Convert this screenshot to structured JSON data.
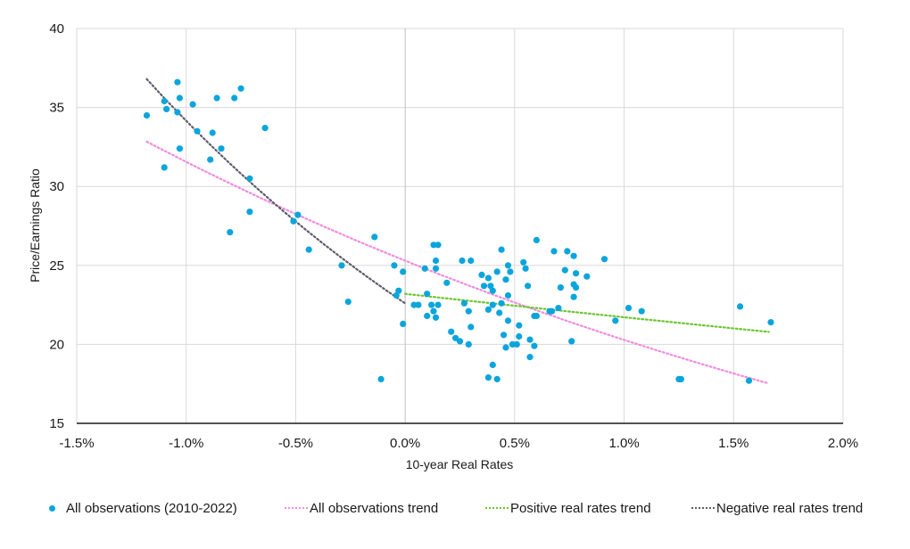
{
  "chart_data": {
    "type": "scatter",
    "title": "",
    "xlabel": "10-year Real Rates",
    "ylabel": "Price/Earnings Ratio",
    "xlim": [
      -1.5,
      2.0
    ],
    "ylim": [
      15,
      40
    ],
    "x_ticks": [
      -1.5,
      -1.0,
      -0.5,
      0.0,
      0.5,
      1.0,
      1.5,
      2.0
    ],
    "x_tick_labels": [
      "-1.5%",
      "-1.0%",
      "-0.5%",
      "0.0%",
      "0.5%",
      "1.0%",
      "1.5%",
      "2.0%"
    ],
    "y_ticks": [
      15,
      20,
      25,
      30,
      35,
      40
    ],
    "y_tick_labels": [
      "15",
      "20",
      "25",
      "30",
      "35",
      "40"
    ],
    "grid": true,
    "legend_position": "bottom",
    "series": [
      {
        "name": "All observations (2010-2022)",
        "kind": "points",
        "color": "#0aa5dc",
        "points": [
          [
            -1.18,
            34.5
          ],
          [
            -1.1,
            35.4
          ],
          [
            -1.09,
            34.9
          ],
          [
            -1.04,
            36.6
          ],
          [
            -1.03,
            35.6
          ],
          [
            -1.04,
            34.7
          ],
          [
            -1.1,
            31.2
          ],
          [
            -1.03,
            32.4
          ],
          [
            -0.97,
            35.2
          ],
          [
            -0.95,
            33.5
          ],
          [
            -0.89,
            31.7
          ],
          [
            -0.88,
            33.4
          ],
          [
            -0.86,
            35.6
          ],
          [
            -0.84,
            32.4
          ],
          [
            -0.78,
            35.6
          ],
          [
            -0.75,
            36.2
          ],
          [
            -0.8,
            27.1
          ],
          [
            -0.64,
            33.7
          ],
          [
            -0.71,
            30.5
          ],
          [
            -0.71,
            28.4
          ],
          [
            -0.49,
            28.2
          ],
          [
            -0.51,
            27.8
          ],
          [
            -0.44,
            26.0
          ],
          [
            -0.29,
            25.0
          ],
          [
            -0.26,
            22.7
          ],
          [
            -0.14,
            26.8
          ],
          [
            -0.11,
            17.8
          ],
          [
            -0.05,
            25.0
          ],
          [
            -0.04,
            23.1
          ],
          [
            -0.01,
            24.6
          ],
          [
            -0.01,
            21.3
          ],
          [
            -0.03,
            23.4
          ],
          [
            0.13,
            26.3
          ],
          [
            0.15,
            26.3
          ],
          [
            0.09,
            24.8
          ],
          [
            0.14,
            25.3
          ],
          [
            0.14,
            24.8
          ],
          [
            0.19,
            23.9
          ],
          [
            0.04,
            22.5
          ],
          [
            0.1,
            23.2
          ],
          [
            0.06,
            22.5
          ],
          [
            0.12,
            22.5
          ],
          [
            0.15,
            22.5
          ],
          [
            0.13,
            22.1
          ],
          [
            0.1,
            21.8
          ],
          [
            0.14,
            21.7
          ],
          [
            0.21,
            20.8
          ],
          [
            0.23,
            20.4
          ],
          [
            0.25,
            20.2
          ],
          [
            0.29,
            20.0
          ],
          [
            0.26,
            25.3
          ],
          [
            0.3,
            25.3
          ],
          [
            0.27,
            22.6
          ],
          [
            0.29,
            22.1
          ],
          [
            0.3,
            21.1
          ],
          [
            0.38,
            24.2
          ],
          [
            0.35,
            24.4
          ],
          [
            0.36,
            23.7
          ],
          [
            0.42,
            24.6
          ],
          [
            0.4,
            23.4
          ],
          [
            0.4,
            22.5
          ],
          [
            0.44,
            26.0
          ],
          [
            0.47,
            25.0
          ],
          [
            0.48,
            24.6
          ],
          [
            0.46,
            24.1
          ],
          [
            0.47,
            23.1
          ],
          [
            0.39,
            23.7
          ],
          [
            0.44,
            22.6
          ],
          [
            0.38,
            22.2
          ],
          [
            0.43,
            22.0
          ],
          [
            0.47,
            21.5
          ],
          [
            0.49,
            20.0
          ],
          [
            0.51,
            20.0
          ],
          [
            0.52,
            21.2
          ],
          [
            0.55,
            24.8
          ],
          [
            0.54,
            25.2
          ],
          [
            0.56,
            23.7
          ],
          [
            0.6,
            26.6
          ],
          [
            0.59,
            21.8
          ],
          [
            0.6,
            21.8
          ],
          [
            0.52,
            20.5
          ],
          [
            0.45,
            20.6
          ],
          [
            0.57,
            20.3
          ],
          [
            0.59,
            19.9
          ],
          [
            0.57,
            19.2
          ],
          [
            0.4,
            18.7
          ],
          [
            0.38,
            17.9
          ],
          [
            0.42,
            17.8
          ],
          [
            0.46,
            19.8
          ],
          [
            0.68,
            25.9
          ],
          [
            0.74,
            25.9
          ],
          [
            0.77,
            25.6
          ],
          [
            0.91,
            25.4
          ],
          [
            0.73,
            24.7
          ],
          [
            0.78,
            24.5
          ],
          [
            0.83,
            24.3
          ],
          [
            0.71,
            23.6
          ],
          [
            0.77,
            23.8
          ],
          [
            0.78,
            23.6
          ],
          [
            0.77,
            23.0
          ],
          [
            0.7,
            22.3
          ],
          [
            0.66,
            22.1
          ],
          [
            0.67,
            22.1
          ],
          [
            1.02,
            22.3
          ],
          [
            1.08,
            22.1
          ],
          [
            0.96,
            21.5
          ],
          [
            0.76,
            20.2
          ],
          [
            1.53,
            22.4
          ],
          [
            1.67,
            21.4
          ],
          [
            1.25,
            17.8
          ],
          [
            1.26,
            17.8
          ],
          [
            1.57,
            17.7
          ]
        ]
      },
      {
        "name": "All observations trend",
        "kind": "trend",
        "model": "exponential",
        "color": "#f08ce0",
        "x_range": [
          -1.18,
          1.66
        ],
        "y_at_x0": 25.3,
        "growth_rate": -0.221
      },
      {
        "name": "Positive real rates trend",
        "kind": "trend",
        "model": "exponential",
        "color": "#6cc530",
        "x_range": [
          0.0,
          1.66
        ],
        "y_at_x0": 23.2,
        "growth_rate": -0.066
      },
      {
        "name": "Negative real rates trend",
        "kind": "trend",
        "model": "exponential",
        "color": "#5d5d6e",
        "x_range": [
          -1.18,
          0.0
        ],
        "y_at_x0": 22.6,
        "growth_rate": -0.413
      }
    ]
  },
  "legend": {
    "items": [
      {
        "label": "All observations (2010-2022)",
        "marker": "dot",
        "color": "#0aa5dc"
      },
      {
        "label": "All observations trend",
        "marker": "dotted-line",
        "color": "#f08ce0"
      },
      {
        "label": "Positive real rates trend",
        "marker": "dotted-line",
        "color": "#6cc530"
      },
      {
        "label": "Negative real rates trend",
        "marker": "dotted-line",
        "color": "#5d5d6e"
      }
    ]
  }
}
